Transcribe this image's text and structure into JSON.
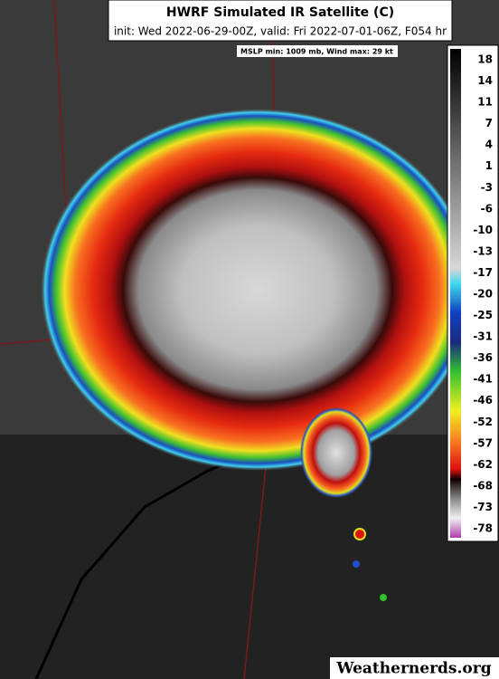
{
  "header": {
    "title": "HWRF Simulated IR Satellite (C)",
    "subtitle": "init: Wed 2022-06-29-00Z, valid: Fri 2022-07-01-06Z, F054 hr"
  },
  "stats": "MSLP min: 1009 mb, Wind max: 29 kt",
  "colorbar": {
    "labels": [
      18,
      14,
      11,
      7,
      4,
      1,
      -3,
      -6,
      -10,
      -13,
      -17,
      -20,
      -25,
      -31,
      -36,
      -41,
      -46,
      -52,
      -57,
      -62,
      -68,
      -73,
      -78
    ]
  },
  "watermark": "Weathernerds.org"
}
